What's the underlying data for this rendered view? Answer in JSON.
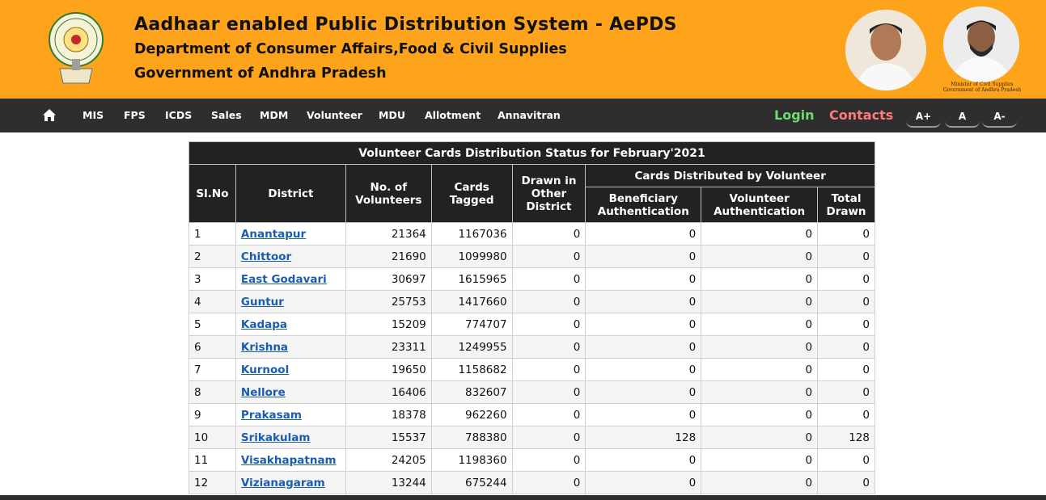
{
  "header": {
    "title": "Aadhaar enabled Public Distribution System - AePDS",
    "subtitle1": "Department of Consumer Affairs,Food & Civil Supplies",
    "subtitle2": "Government of Andhra Pradesh",
    "caption_line1": "Minister of Civil Supplies",
    "caption_line2": "Government of Andhra Pradesh",
    "bg_color": "#fea41c"
  },
  "nav": {
    "items": [
      "MIS",
      "FPS",
      "ICDS",
      "Sales",
      "MDM",
      "Volunteer",
      "MDU",
      "Allotment",
      "Annavitran"
    ],
    "login": "Login",
    "contacts": "Contacts",
    "font_buttons": [
      "A+",
      "A",
      "A-"
    ]
  },
  "table": {
    "caption": "Volunteer Cards Distribution Status for February'2021",
    "headers": {
      "slno": "Sl.No",
      "district": "District",
      "volunteers": "No. of Volunteers",
      "tagged": "Cards Tagged",
      "other": "Drawn in Other District",
      "group": "Cards Distributed by Volunteer",
      "benef": "Beneficiary Authentication",
      "vol_auth": "Volunteer Authentication",
      "total": "Total Drawn"
    },
    "rows": [
      [
        "1",
        "Anantapur",
        "21364",
        "1167036",
        "0",
        "0",
        "0",
        "0"
      ],
      [
        "2",
        "Chittoor",
        "21690",
        "1099980",
        "0",
        "0",
        "0",
        "0"
      ],
      [
        "3",
        "East Godavari",
        "30697",
        "1615965",
        "0",
        "0",
        "0",
        "0"
      ],
      [
        "4",
        "Guntur",
        "25753",
        "1417660",
        "0",
        "0",
        "0",
        "0"
      ],
      [
        "5",
        "Kadapa",
        "15209",
        "774707",
        "0",
        "0",
        "0",
        "0"
      ],
      [
        "6",
        "Krishna",
        "23311",
        "1249955",
        "0",
        "0",
        "0",
        "0"
      ],
      [
        "7",
        "Kurnool",
        "19650",
        "1158682",
        "0",
        "0",
        "0",
        "0"
      ],
      [
        "8",
        "Nellore",
        "16406",
        "832607",
        "0",
        "0",
        "0",
        "0"
      ],
      [
        "9",
        "Prakasam",
        "18378",
        "962260",
        "0",
        "0",
        "0",
        "0"
      ],
      [
        "10",
        "Srikakulam",
        "15537",
        "788380",
        "0",
        "128",
        "0",
        "128"
      ],
      [
        "11",
        "Visakhapatnam",
        "24205",
        "1198360",
        "0",
        "0",
        "0",
        "0"
      ],
      [
        "12",
        "Vizianagaram",
        "13244",
        "675244",
        "0",
        "0",
        "0",
        "0"
      ]
    ]
  }
}
